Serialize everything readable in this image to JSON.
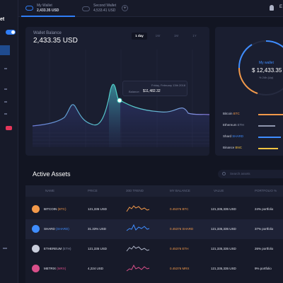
{
  "sidebar": {
    "title": "et",
    "badge": ""
  },
  "topbar": {
    "wallets": [
      {
        "name": "My Wallet",
        "amount": "2,433.35 USD"
      },
      {
        "name": "Second Wallet",
        "amount": "4,533.41 USD"
      }
    ],
    "add_label": "+",
    "user_initial": "E"
  },
  "balance_chart": {
    "label": "Wallet Balance",
    "value": "2,433.35 USD",
    "ranges": [
      "1 day",
      "1W",
      "1M",
      "1Y"
    ],
    "active_range": "1 day",
    "tooltip": {
      "date": "Friday, February 13th 2018",
      "balance_label": "Balance:",
      "balance_value": "$11,482.32"
    }
  },
  "my_wallet": {
    "title": "My wallet",
    "amount": "$ 12,433.35",
    "change": "% 24h (Up)",
    "coins": [
      {
        "name": "Bitcoin",
        "sym": "BTC",
        "color": "#f2994a",
        "share": 0.82
      },
      {
        "name": "Ethereum",
        "sym": "ETH",
        "color": "#8e95ad",
        "share": 0.55
      },
      {
        "name": "Shard",
        "sym": "SHARD",
        "color": "#3f8dff",
        "share": 0.72
      },
      {
        "name": "Binance",
        "sym": "BNC",
        "color": "#f5c542",
        "share": 0.62
      }
    ]
  },
  "assets": {
    "title": "Active Assets",
    "search_placeholder": "Search assets",
    "columns": [
      "NAME",
      "PRICE",
      "30D TREND",
      "MY BALANCE",
      "VALUE",
      "PORTFOLIO %"
    ],
    "rows": [
      {
        "name": "BITCOIN",
        "sym": "(BTC)",
        "price": "121,335 USD",
        "balance": "0.45376 BTC",
        "value": "121,335,335 USD",
        "portfolio": "24% portfolio",
        "color": "#f2994a"
      },
      {
        "name": "SHARD",
        "sym": "(SHARD)",
        "price": "31.33% USD",
        "balance": "0.45376 SHARD",
        "value": "121,335,335 USD",
        "portfolio": "37% portfolio",
        "color": "#3f8dff"
      },
      {
        "name": "ETHEREUM",
        "sym": "(ETH)",
        "price": "121,335 USD",
        "balance": "0.45376 ETH",
        "value": "121,335,335 USD",
        "portfolio": "26% portfolio",
        "color": "#aeb4c7"
      },
      {
        "name": "METRIX",
        "sym": "(MRX)",
        "price": "4,224 USD",
        "balance": "0.45376 MRX",
        "value": "121,335,335 USD",
        "portfolio": "9% portfolio",
        "color": "#d94f8a"
      }
    ]
  }
}
